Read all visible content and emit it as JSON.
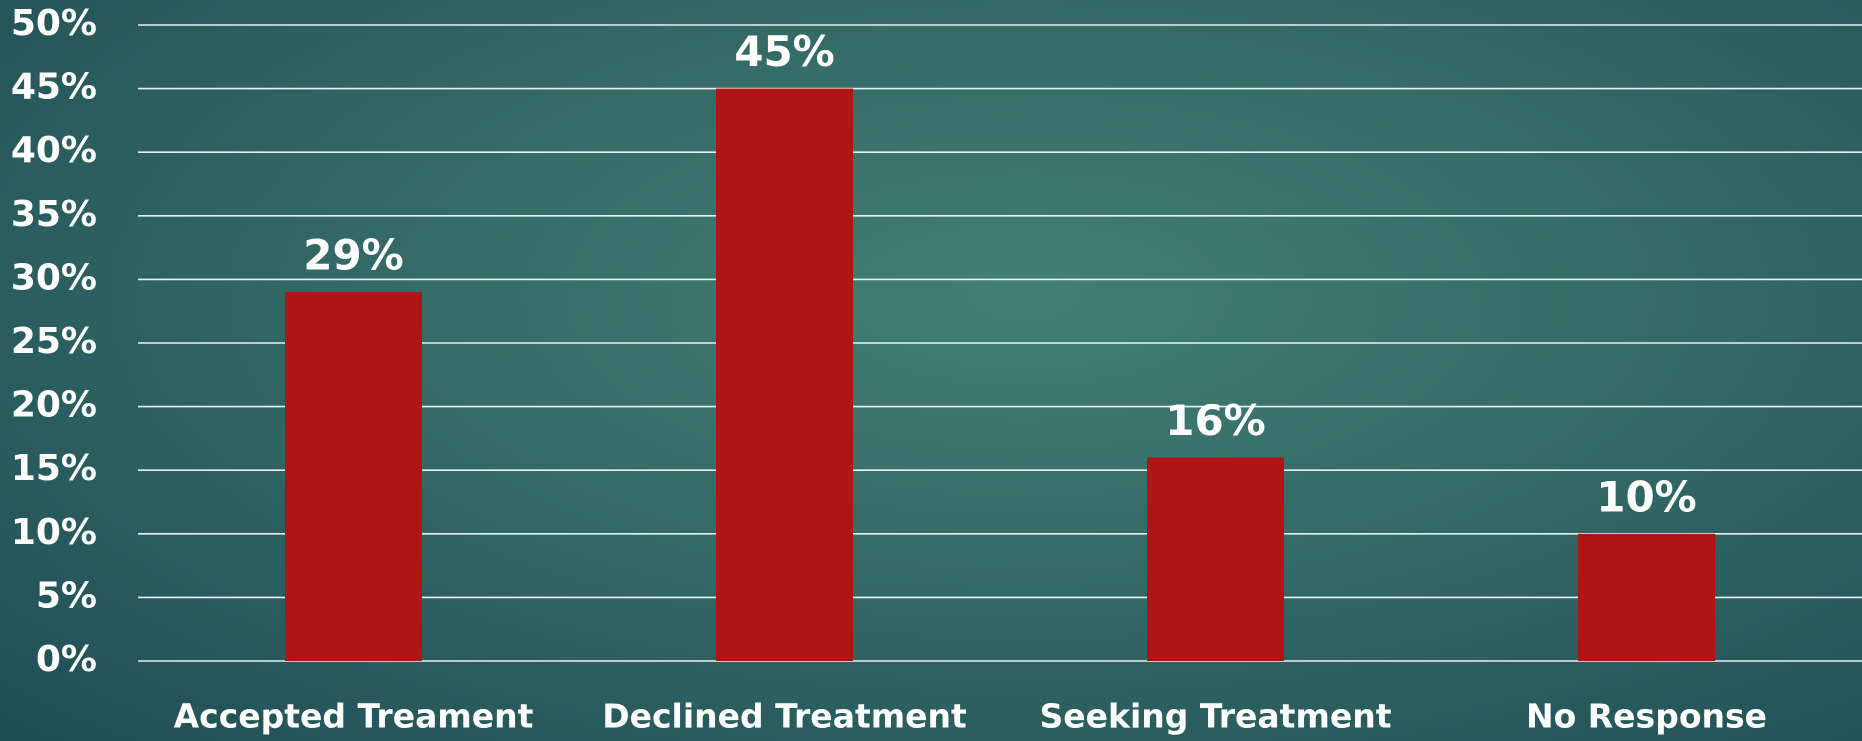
{
  "chart_data": {
    "type": "bar",
    "categories": [
      "Accepted Treament",
      "Declined Treatment",
      "Seeking Treatment",
      "No Response"
    ],
    "values": [
      29,
      45,
      16,
      10
    ],
    "value_labels": [
      "29%",
      "45%",
      "16%",
      "10%"
    ],
    "color": "#b01515",
    "ylim": [
      0,
      50
    ],
    "yticks": [
      {
        "value": 0,
        "label": "0%"
      },
      {
        "value": 5,
        "label": "5%"
      },
      {
        "value": 10,
        "label": "10%"
      },
      {
        "value": 15,
        "label": "15%"
      },
      {
        "value": 20,
        "label": "20%"
      },
      {
        "value": 25,
        "label": "25%"
      },
      {
        "value": 30,
        "label": "30%"
      },
      {
        "value": 35,
        "label": "35%"
      },
      {
        "value": 40,
        "label": "40%"
      },
      {
        "value": 45,
        "label": "45%"
      },
      {
        "value": 50,
        "label": "50%"
      }
    ],
    "grid": true
  }
}
